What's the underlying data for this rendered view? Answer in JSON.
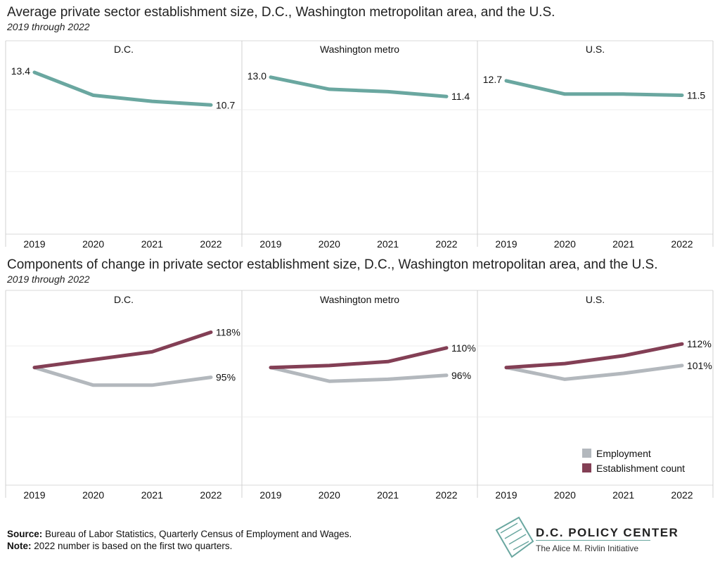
{
  "titles": {
    "top": "Average private sector establishment size, D.C., Washington metropolitan area, and the U.S.",
    "top_sub": "2019 through 2022",
    "bottom": "Components of change in private sector establishment size, D.C., Washington metropolitan area, and the U.S.",
    "bottom_sub": "2019 through 2022"
  },
  "legend": {
    "employment": "Employment",
    "establishment": "Establishment count"
  },
  "footer": {
    "source_label": "Source:",
    "source_text": " Bureau of Labor Statistics, Quarterly Census of Employment and Wages.",
    "note_label": "Note:",
    "note_text": " 2022 number is based on the first two quarters."
  },
  "logo": {
    "name": "D.C. POLICY CENTER",
    "tagline": "The Alice M. Rivlin Initiative"
  },
  "colors": {
    "size_line": "#6aa7a0",
    "employment": "#b3b8bd",
    "establishment": "#833f55"
  },
  "chart_data": [
    {
      "type": "line",
      "facets": [
        "D.C.",
        "Washington metro",
        "U.S."
      ],
      "x": [
        "2019",
        "2020",
        "2021",
        "2022"
      ],
      "ylim": [
        0,
        14.5
      ],
      "series": [
        {
          "facet": "D.C.",
          "values": [
            13.4,
            11.5,
            11.0,
            10.7
          ],
          "start_label": "13.4",
          "end_label": "10.7"
        },
        {
          "facet": "Washington metro",
          "values": [
            13.0,
            12.0,
            11.8,
            11.4
          ],
          "start_label": "13.0",
          "end_label": "11.4"
        },
        {
          "facet": "U.S.",
          "values": [
            12.7,
            11.6,
            11.6,
            11.5
          ],
          "start_label": "12.7",
          "end_label": "11.5"
        }
      ],
      "grid": true
    },
    {
      "type": "line",
      "facets": [
        "D.C.",
        "Washington metro",
        "U.S."
      ],
      "x": [
        "2019",
        "2020",
        "2021",
        "2022"
      ],
      "ylim": [
        40,
        130
      ],
      "legend": "bottom-right",
      "series": [
        {
          "facet": "D.C.",
          "name": "Employment",
          "values": [
            100,
            91,
            91,
            95
          ],
          "end_label": "95%"
        },
        {
          "facet": "D.C.",
          "name": "Establishment count",
          "values": [
            100,
            104,
            108,
            118
          ],
          "end_label": "118%"
        },
        {
          "facet": "Washington metro",
          "name": "Employment",
          "values": [
            100,
            93,
            94,
            96
          ],
          "end_label": "96%"
        },
        {
          "facet": "Washington metro",
          "name": "Establishment count",
          "values": [
            100,
            101,
            103,
            110
          ],
          "end_label": "110%"
        },
        {
          "facet": "U.S.",
          "name": "Employment",
          "values": [
            100,
            94,
            97,
            101
          ],
          "end_label": "101%"
        },
        {
          "facet": "U.S.",
          "name": "Establishment count",
          "values": [
            100,
            102,
            106,
            112
          ],
          "end_label": "112%"
        }
      ],
      "grid": true
    }
  ]
}
